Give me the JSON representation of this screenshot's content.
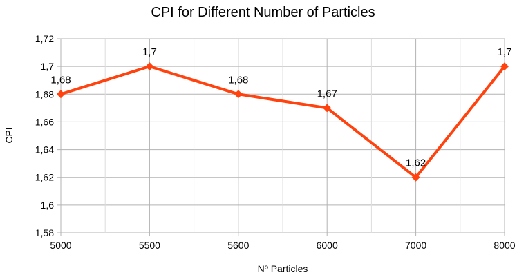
{
  "chart_data": {
    "type": "line",
    "title": "CPI for Different Number of Particles",
    "xlabel": "Nº Particles",
    "ylabel": "CPI",
    "categories": [
      "5000",
      "5500",
      "5600",
      "6000",
      "7000",
      "8000"
    ],
    "series": [
      {
        "values": [
          1.68,
          1.7,
          1.68,
          1.67,
          1.62,
          1.7
        ],
        "data_labels": [
          "1,68",
          "1,7",
          "1,68",
          "1,67",
          "1,62",
          "1,7"
        ],
        "color": "#ff420e",
        "marker": "diamond"
      }
    ],
    "ylim": [
      1.58,
      1.72
    ],
    "yticks": [
      1.58,
      1.6,
      1.62,
      1.64,
      1.66,
      1.68,
      1.7,
      1.72
    ],
    "ytick_labels": [
      "1,58",
      "1,6",
      "1,62",
      "1,64",
      "1,66",
      "1,68",
      "1,7",
      "1,72"
    ],
    "grid": true,
    "gridline_color": "#b3b3b3",
    "legend": "none"
  }
}
